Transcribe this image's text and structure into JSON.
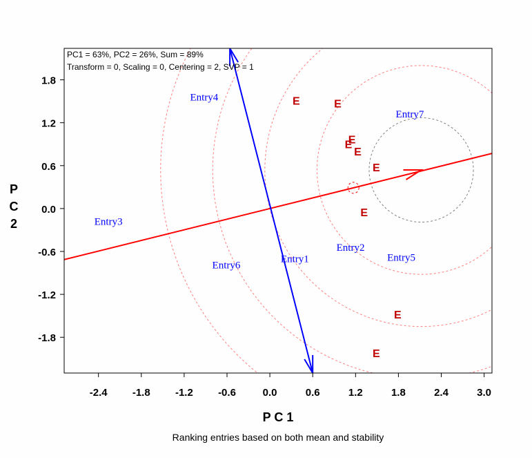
{
  "chart_data": {
    "type": "scatter",
    "subtype": "GGE biplot (mean vs stability)",
    "info_lines": [
      "PC1 = 63%, PC2 = 26%, Sum = 89%",
      "Transform = 0, Scaling = 0, Centering = 2, SVP = 1"
    ],
    "xlabel": "P C 1",
    "ylabel": "P C 2",
    "caption": "Ranking entries based on both mean and stability",
    "xlim": [
      -2.88,
      3.11
    ],
    "ylim": [
      -2.3,
      2.24
    ],
    "xticks": [
      "-2.4",
      "-1.8",
      "-1.2",
      "-0.6",
      "0.0",
      "0.6",
      "1.2",
      "1.8",
      "2.4",
      "3.0"
    ],
    "yticks": [
      "1.8",
      "1.2",
      "0.6",
      "0.0",
      "-0.6",
      "-1.2",
      "-1.8"
    ],
    "grid": false,
    "entries": [
      {
        "label": "Entry1",
        "x": 0.35,
        "y": -0.7
      },
      {
        "label": "Entry2",
        "x": 1.13,
        "y": -0.54
      },
      {
        "label": "Entry3",
        "x": -2.26,
        "y": -0.18
      },
      {
        "label": "Entry4",
        "x": -0.92,
        "y": 1.56
      },
      {
        "label": "Entry5",
        "x": 1.84,
        "y": -0.68
      },
      {
        "label": "Entry6",
        "x": -0.61,
        "y": -0.79
      },
      {
        "label": "Entry7",
        "x": 1.96,
        "y": 1.32
      }
    ],
    "environments": [
      {
        "label": "E",
        "x": 0.37,
        "y": 1.51
      },
      {
        "label": "E",
        "x": 0.95,
        "y": 1.47
      },
      {
        "label": "E",
        "x": 1.15,
        "y": 0.97
      },
      {
        "label": "E",
        "x": 1.1,
        "y": 0.9
      },
      {
        "label": "E",
        "x": 1.23,
        "y": 0.8
      },
      {
        "label": "E",
        "x": 1.49,
        "y": 0.58
      },
      {
        "label": "E",
        "x": 1.32,
        "y": -0.05
      },
      {
        "label": "E",
        "x": 1.79,
        "y": -1.48
      },
      {
        "label": "E",
        "x": 1.49,
        "y": -2.02
      }
    ],
    "average_environment": {
      "x": 1.17,
      "y": 0.29
    },
    "ideal_entry": {
      "x": 2.12,
      "y": 0.54
    },
    "ideal_circle_radius": 0.73,
    "ring_count": 5,
    "stability_axis_ends": [
      {
        "x": -0.56,
        "y": 2.24
      },
      {
        "x": 0.6,
        "y": -2.3
      }
    ],
    "colors": {
      "entry": "#0000ff",
      "environment": "#c00000",
      "ata_line": "#ff0000",
      "stability_axis": "#0000ff",
      "rings": "#ff8080",
      "ideal_circle": "#808080"
    }
  }
}
